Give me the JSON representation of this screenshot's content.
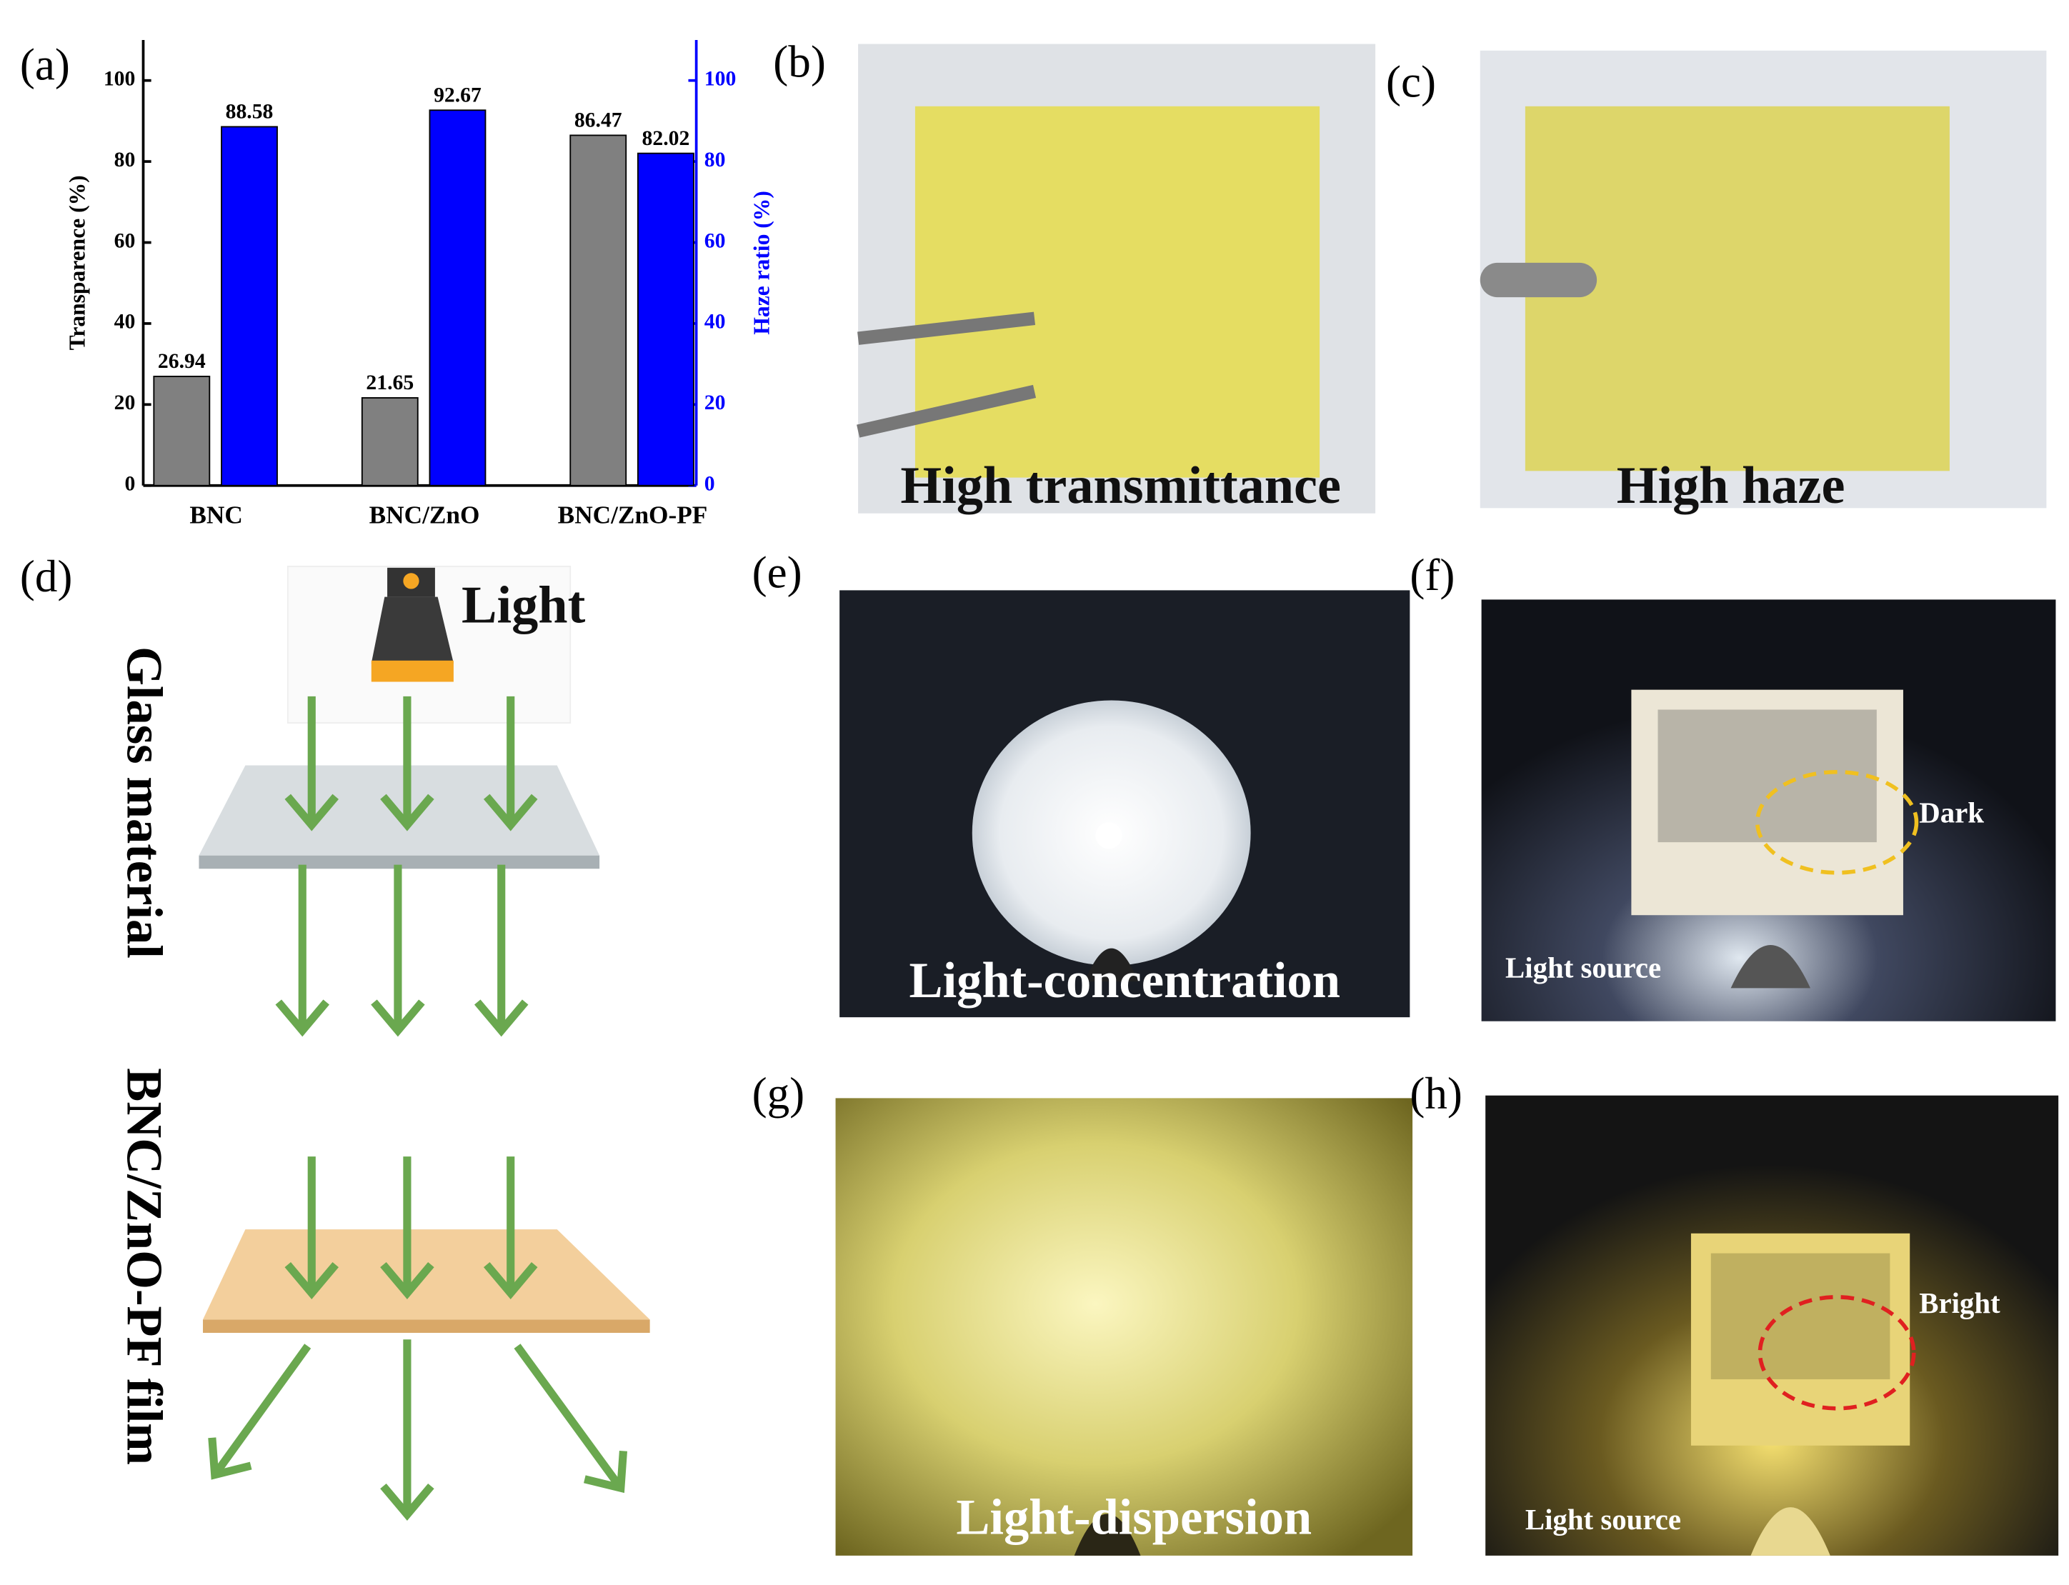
{
  "chart_data": {
    "type": "bar",
    "categories": [
      "BNC",
      "BNC/ZnO",
      "BNC/ZnO-PF"
    ],
    "series": [
      {
        "name": "Transparence",
        "color": "#808080",
        "values": [
          26.94,
          21.65,
          86.47
        ]
      },
      {
        "name": "Haze ratio",
        "color": "#0000ff",
        "values": [
          88.58,
          92.67,
          82.02
        ],
        "axis": "y2"
      }
    ],
    "ylabel": "Transparence (%)",
    "y2label": "Haze ratio (%)",
    "ylim": [
      0,
      110
    ],
    "yticks": [
      0,
      20,
      40,
      60,
      80,
      100
    ],
    "y2lim": [
      0,
      110
    ],
    "y2ticks": [
      0,
      20,
      40,
      60,
      80,
      100
    ]
  },
  "panel_labels": [
    "(a)",
    "(b)",
    "(c)",
    "(d)",
    "(e)",
    "(f)",
    "(g)",
    "(h)"
  ],
  "panel_b": {
    "caption": "High transmittance"
  },
  "panel_c": {
    "caption": "High haze"
  },
  "panel_d": {
    "light": "Light",
    "glass": "Glass material",
    "film": "BNC/ZnO-PF film"
  },
  "panel_e": {
    "caption": "Light-concentration"
  },
  "panel_f": {
    "dark": "Dark",
    "source": "Light source"
  },
  "panel_g": {
    "caption": "Light-dispersion"
  },
  "panel_h": {
    "bright": "Bright",
    "source": "Light source"
  }
}
